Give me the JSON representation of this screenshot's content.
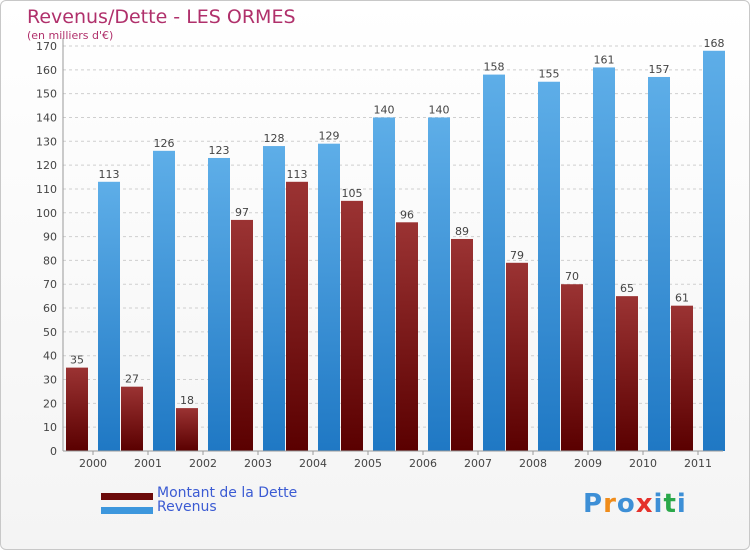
{
  "title": "Revenus/Dette - LES ORMES",
  "subtitle": "(en milliers d'€)",
  "colors": {
    "dette_dark": "#5a0000",
    "dette_light": "#9b3333",
    "revenus_dark": "#1f78c4",
    "revenus_light": "#5eaee8",
    "grid": "#cfcfcf",
    "axis_text": "#444444",
    "title": "#b0306b"
  },
  "legend": {
    "dette": "Montant de la Dette",
    "revenus": "Revenus"
  },
  "logo": {
    "letters": [
      "P",
      "r",
      "o",
      "x",
      "i",
      "t",
      "i"
    ],
    "colors": [
      "#3d8fd6",
      "#f08c1a",
      "#3d8fd6",
      "#e5312b",
      "#3d8fd6",
      "#2aa84a",
      "#3d8fd6"
    ]
  },
  "chart_data": {
    "type": "bar",
    "categories": [
      "2000",
      "2001",
      "2002",
      "2003",
      "2004",
      "2005",
      "2006",
      "2007",
      "2008",
      "2009",
      "2010",
      "2011"
    ],
    "series": [
      {
        "name": "Montant de la Dette",
        "values": [
          35,
          27,
          18,
          97,
          113,
          105,
          96,
          89,
          79,
          70,
          65,
          61
        ]
      },
      {
        "name": "Revenus",
        "values": [
          113,
          126,
          123,
          128,
          129,
          140,
          140,
          158,
          155,
          161,
          157,
          168
        ]
      }
    ],
    "yticks": [
      0,
      10,
      20,
      30,
      40,
      50,
      60,
      70,
      80,
      90,
      100,
      110,
      120,
      130,
      140,
      150,
      160,
      170
    ],
    "ylim": [
      0,
      170
    ],
    "grid": true,
    "legend_position": "bottom-left"
  }
}
